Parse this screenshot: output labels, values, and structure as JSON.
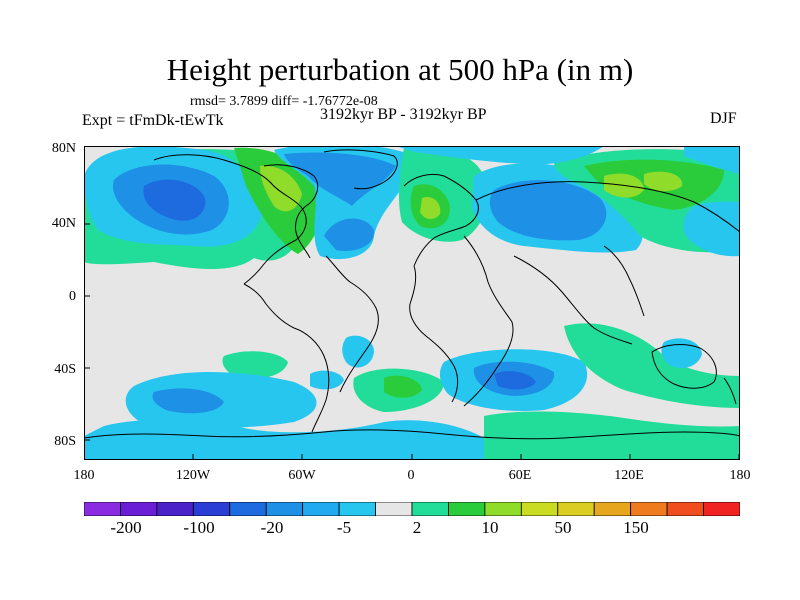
{
  "title": "Height perturbation at 500 hPa (in m)",
  "stats": "rmsd= 3.7899 diff= -1.76772e-08",
  "expt": "Expt = tFmDk-tEwTk",
  "period": "3192kyr BP - 3192kyr BP",
  "season": "DJF",
  "lat_labels": [
    "80N",
    "40N",
    "0",
    "40S",
    "80S"
  ],
  "lon_labels": [
    "180",
    "120W",
    "60W",
    "0",
    "60E",
    "120E",
    "180"
  ],
  "colorbar": {
    "labels": [
      "-200",
      "-100",
      "-20",
      "-5",
      "2",
      "10",
      "50",
      "150"
    ],
    "colors": [
      "#8a2be2",
      "#6a1fd6",
      "#4b22c8",
      "#2a3ed6",
      "#1e6bdf",
      "#1e90e6",
      "#22aaf0",
      "#27c6ef",
      "#e6e6e6",
      "#22dd99",
      "#2bcc3c",
      "#8fdc2a",
      "#c9dc22",
      "#dccd22",
      "#e6a61e",
      "#ee7b1e",
      "#f04e1e",
      "#f02222"
    ]
  },
  "palette": {
    "background": "#e6e6e6",
    "light_blue": "#27c6ef",
    "mid_blue": "#1e90e6",
    "deep_blue": "#1e6bdf",
    "teal_green": "#22dd99",
    "green": "#2bcc3c",
    "yellow_green": "#8fdc2a",
    "yellow": "#c9dc22"
  }
}
